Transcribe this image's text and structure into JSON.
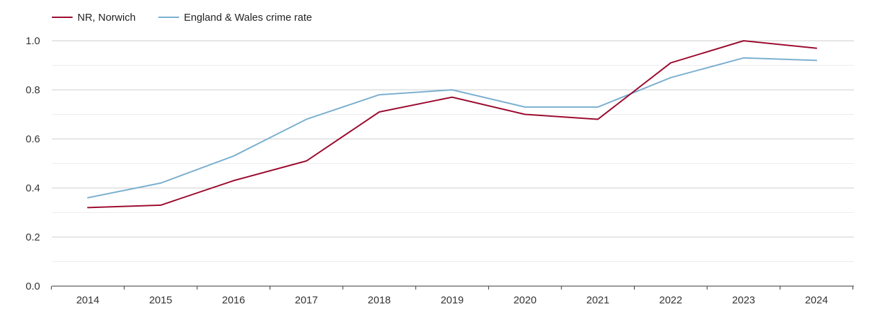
{
  "chart_data": {
    "type": "line",
    "title": "",
    "xlabel": "",
    "ylabel": "",
    "categories": [
      "2014",
      "2015",
      "2016",
      "2017",
      "2018",
      "2019",
      "2020",
      "2021",
      "2022",
      "2023",
      "2024"
    ],
    "yticks": [
      "0.0",
      "0.2",
      "0.4",
      "0.6",
      "0.8",
      "1.0"
    ],
    "ylim": [
      0,
      1.0
    ],
    "grid": true,
    "legend_position": "top-left",
    "series": [
      {
        "name": "NR, Norwich",
        "color": "#9b0a2e",
        "values": [
          0.32,
          0.33,
          0.43,
          0.51,
          0.71,
          0.77,
          0.7,
          0.68,
          0.91,
          1.0,
          0.97
        ]
      },
      {
        "name": "England & Wales crime rate",
        "color": "#7aafd0",
        "values": [
          0.36,
          0.42,
          0.53,
          0.68,
          0.78,
          0.8,
          0.73,
          0.73,
          0.85,
          0.93,
          0.92
        ]
      }
    ]
  }
}
